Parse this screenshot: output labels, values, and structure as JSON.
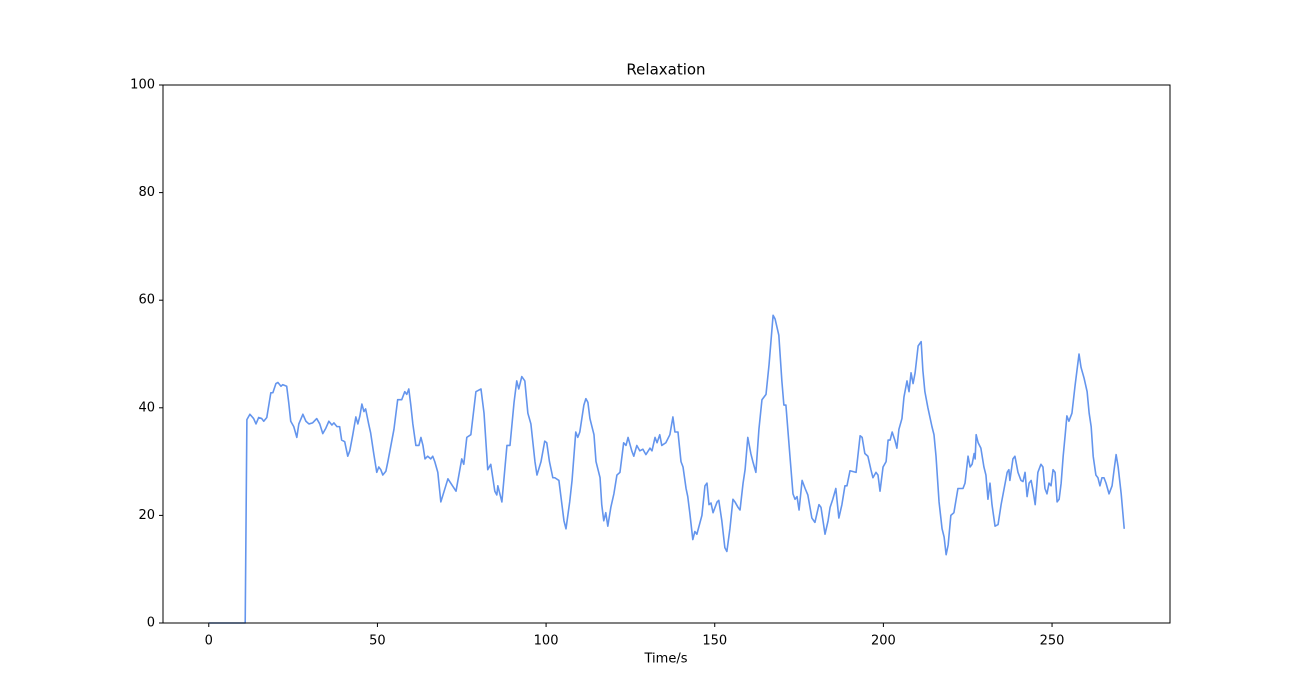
{
  "chart_data": {
    "type": "line",
    "title": "Relaxation",
    "xlabel": "Time/s",
    "xlim": [
      -13.57,
      284.97
    ],
    "ylim": [
      0,
      100
    ],
    "xticks": [
      0,
      50,
      100,
      150,
      200,
      250
    ],
    "yticks": [
      0,
      20,
      40,
      60,
      80,
      100
    ],
    "series": [
      {
        "color": "#6495ED",
        "x": [
          0,
          10.8,
          11.3,
          12.2,
          13.3,
          14,
          14.8,
          15.7,
          16.3,
          17.2,
          18.4,
          19,
          19.9,
          20.5,
          21.4,
          21.9,
          23.1,
          23.7,
          24.3,
          25.2,
          26.1,
          26.7,
          27.9,
          28.8,
          29.7,
          30.8,
          32,
          32.9,
          33.8,
          34.7,
          35.6,
          36.5,
          37.1,
          38,
          38.8,
          39.4,
          40.3,
          41.2,
          41.8,
          42.7,
          43.6,
          44.2,
          44.8,
          45.4,
          46,
          46.5,
          47.4,
          48,
          48.9,
          49.8,
          50.4,
          51,
          51.6,
          52.5,
          53.1,
          54,
          54.9,
          56,
          57.2,
          58.1,
          58.7,
          59.3,
          59.9,
          60.5,
          61.4,
          62.3,
          62.9,
          63.5,
          64.1,
          64.9,
          65.8,
          66.4,
          67,
          67.9,
          68.8,
          70.9,
          73.3,
          75,
          75.6,
          76.5,
          77.7,
          79.2,
          80.7,
          81.6,
          82.7,
          83.6,
          84.8,
          85.4,
          85.7,
          86.9,
          88.4,
          89.3,
          90.5,
          91.3,
          91.9,
          92.8,
          93.7,
          94.6,
          95.5,
          96.7,
          97.3,
          98.5,
          99.6,
          100.2,
          101,
          102,
          102.6,
          103.8,
          105.3,
          105.9,
          107,
          107.7,
          108.8,
          109.4,
          110,
          111.2,
          111.8,
          112.4,
          113,
          114.2,
          114.8,
          116,
          116.5,
          117.1,
          117.7,
          118.3,
          119.2,
          120.1,
          121,
          121.9,
          123,
          123.7,
          124.3,
          125.4,
          126,
          126.9,
          127.8,
          128.7,
          129.6,
          130.8,
          131.4,
          132.3,
          132.9,
          133.7,
          134.3,
          135.5,
          136.7,
          137.6,
          138.2,
          139.1,
          140,
          140.6,
          141.5,
          142,
          142.6,
          143.5,
          144.1,
          144.7,
          146.2,
          147.1,
          147.7,
          148.3,
          148.9,
          149.5,
          150.7,
          151.2,
          152.1,
          153,
          153.6,
          154.5,
          155.4,
          156,
          156.9,
          157.5,
          158.4,
          159,
          159.8,
          160.7,
          161.3,
          162.2,
          163.1,
          164,
          165.2,
          166.1,
          167.3,
          167.9,
          169,
          169.9,
          170.5,
          171.1,
          172.3,
          173.2,
          173.8,
          174.4,
          175,
          175.9,
          176.8,
          177.6,
          178.8,
          179.7,
          180.9,
          181.5,
          182.7,
          183.6,
          184.2,
          185,
          185.9,
          186.8,
          187.7,
          188.6,
          189.2,
          190.1,
          191.9,
          193.1,
          193.7,
          194.5,
          195.4,
          196.3,
          196.9,
          197.8,
          198.4,
          199,
          199.9,
          200.8,
          201.4,
          202,
          202.6,
          203.4,
          204,
          204.6,
          205.5,
          206.1,
          207,
          207.6,
          208.2,
          208.8,
          209.4,
          210.3,
          211.2,
          211.7,
          212.3,
          213.2,
          214.4,
          215,
          215.6,
          216.5,
          217.4,
          218,
          218.6,
          219.2,
          220,
          220.9,
          222.1,
          223.6,
          224.2,
          225.1,
          225.7,
          226.3,
          226.9,
          227.2,
          227.5,
          228.1,
          228.9,
          229.8,
          230.4,
          231,
          231.6,
          232.2,
          233.1,
          234,
          234.9,
          235.8,
          236.7,
          237.2,
          237.5,
          238.4,
          239,
          239.9,
          240.8,
          241.4,
          242,
          242.6,
          243.2,
          243.8,
          244.4,
          245,
          245.8,
          246.7,
          247.3,
          247.9,
          248.5,
          249.1,
          249.7,
          250.3,
          250.9,
          251.5,
          252.1,
          252.7,
          253.3,
          253.9,
          254.4,
          255,
          255.9,
          256.8,
          257.4,
          258,
          258.6,
          259.5,
          260.4,
          261,
          261.6,
          262.2,
          263,
          263.6,
          264.2,
          264.8,
          265.4,
          266,
          266.9,
          267.8,
          268.4,
          269,
          269.6,
          270.5,
          271.4
        ],
        "values": [
          0,
          0,
          37.8,
          38.8,
          38,
          37,
          38.2,
          38,
          37.5,
          38.2,
          42.8,
          42.8,
          44.5,
          44.7,
          44,
          44.3,
          44,
          41,
          37.5,
          36.5,
          34.5,
          37,
          38.8,
          37.5,
          37,
          37.2,
          38,
          37,
          35.2,
          36.2,
          37.5,
          36.8,
          37.2,
          36.5,
          36.5,
          34,
          33.7,
          31,
          32,
          35,
          38.3,
          37,
          38.5,
          40.7,
          39.3,
          39.8,
          37,
          35.3,
          31.5,
          28,
          29,
          28.5,
          27.5,
          28.2,
          30,
          33,
          36,
          41.5,
          41.5,
          43,
          42.5,
          43.5,
          40.5,
          37,
          33,
          33,
          34.5,
          33,
          30.5,
          31,
          30.5,
          31,
          30,
          28,
          22.5,
          26.8,
          24.5,
          30.5,
          29.5,
          34.5,
          35,
          43,
          43.5,
          39,
          28.5,
          29.5,
          24.5,
          23.8,
          25.5,
          22.5,
          33,
          33,
          41,
          45,
          43.5,
          45.8,
          45,
          39,
          37,
          30,
          27.5,
          30,
          33.8,
          33.5,
          30,
          27,
          27,
          26.5,
          19,
          17.5,
          22.5,
          26.5,
          35.5,
          34.5,
          35.5,
          40.5,
          41.7,
          41,
          38,
          35,
          30,
          27,
          22,
          19,
          20.5,
          18,
          21.5,
          24,
          27.5,
          28,
          33.5,
          33,
          34.5,
          32,
          31,
          33,
          32,
          32.3,
          31.3,
          32.5,
          32,
          34.5,
          33.5,
          35,
          33,
          33.5,
          35,
          38.3,
          35.5,
          35.5,
          30,
          29,
          25,
          23.5,
          20.5,
          15.5,
          17,
          16.5,
          20,
          25.5,
          26,
          22,
          22.3,
          20.5,
          22.5,
          22.8,
          19,
          14,
          13.3,
          17.5,
          23,
          22.5,
          21.5,
          21,
          26,
          28.5,
          34.5,
          31.5,
          30,
          28,
          36,
          41.5,
          42.5,
          48,
          57.2,
          56.5,
          53.5,
          45,
          40.5,
          40.5,
          31,
          24,
          23,
          23.5,
          21,
          26.5,
          25,
          23.8,
          19.5,
          18.7,
          22,
          21.5,
          16.5,
          19,
          21.5,
          23,
          25,
          19.5,
          22,
          25.5,
          25.5,
          28.3,
          28,
          34.8,
          34.5,
          31.5,
          31,
          28.5,
          27,
          28,
          27.5,
          24.5,
          29,
          30,
          34,
          34,
          35.5,
          34,
          32.5,
          36,
          38,
          42,
          45,
          43,
          46.5,
          44.5,
          46.5,
          51.5,
          52.3,
          47,
          43,
          40,
          36.5,
          35,
          31,
          22.5,
          17.5,
          16,
          12.7,
          14.5,
          20,
          20.5,
          25,
          25,
          26,
          31,
          29,
          29.5,
          31.5,
          30.5,
          35,
          33.5,
          32.5,
          29,
          27.5,
          23,
          26,
          22,
          18,
          18.3,
          22,
          25,
          28,
          28.5,
          26.5,
          30.5,
          31,
          28,
          26.5,
          26.3,
          28,
          23.5,
          26,
          26.5,
          24.5,
          22,
          28,
          29.5,
          29,
          25,
          24,
          26,
          25.5,
          28.5,
          28,
          22.5,
          23,
          26,
          31,
          35,
          38.5,
          37.5,
          39,
          44,
          47,
          50,
          47.5,
          45.5,
          43,
          39,
          36.5,
          31,
          27.5,
          27,
          25.5,
          27,
          27,
          26,
          24,
          25.5,
          28.5,
          31.3,
          29,
          24,
          17.5
        ]
      }
    ]
  }
}
